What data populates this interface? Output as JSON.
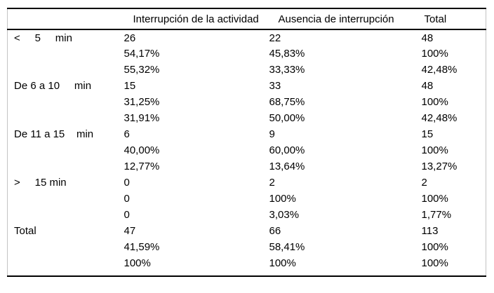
{
  "table": {
    "headers": [
      "",
      "Interrupción de la actividad",
      "Ausencia de interrupción",
      "Total"
    ],
    "rows": [
      {
        "label": "<     5     min",
        "lines": [
          [
            "26",
            "22",
            "48"
          ],
          [
            "54,17%",
            "45,83%",
            "100%"
          ],
          [
            "55,32%",
            "33,33%",
            "42,48%"
          ]
        ]
      },
      {
        "label": "De 6 a 10     min",
        "lines": [
          [
            "15",
            "33",
            "48"
          ],
          [
            "31,25%",
            "68,75%",
            "100%"
          ],
          [
            "31,91%",
            "50,00%",
            "42,48%"
          ]
        ]
      },
      {
        "label": "De 11 a 15    min",
        "lines": [
          [
            "6",
            "9",
            "15"
          ],
          [
            "40,00%",
            "60,00%",
            "100%"
          ],
          [
            "12,77%",
            "13,64%",
            "13,27%"
          ]
        ]
      },
      {
        "label": ">     15 min",
        "lines": [
          [
            "0",
            "2",
            "2"
          ],
          [
            "0",
            "100%",
            "100%"
          ],
          [
            "0",
            "3,03%",
            "1,77%"
          ]
        ]
      },
      {
        "label": "Total",
        "lines": [
          [
            "47",
            "66",
            "113"
          ],
          [
            "41,59%",
            "58,41%",
            "100%"
          ],
          [
            "100%",
            "100%",
            "100%"
          ]
        ]
      }
    ]
  },
  "colors": {
    "rule_black": "#000000",
    "side_border_gray": "#c3c3c3",
    "text": "#000000",
    "background": "#ffffff"
  }
}
